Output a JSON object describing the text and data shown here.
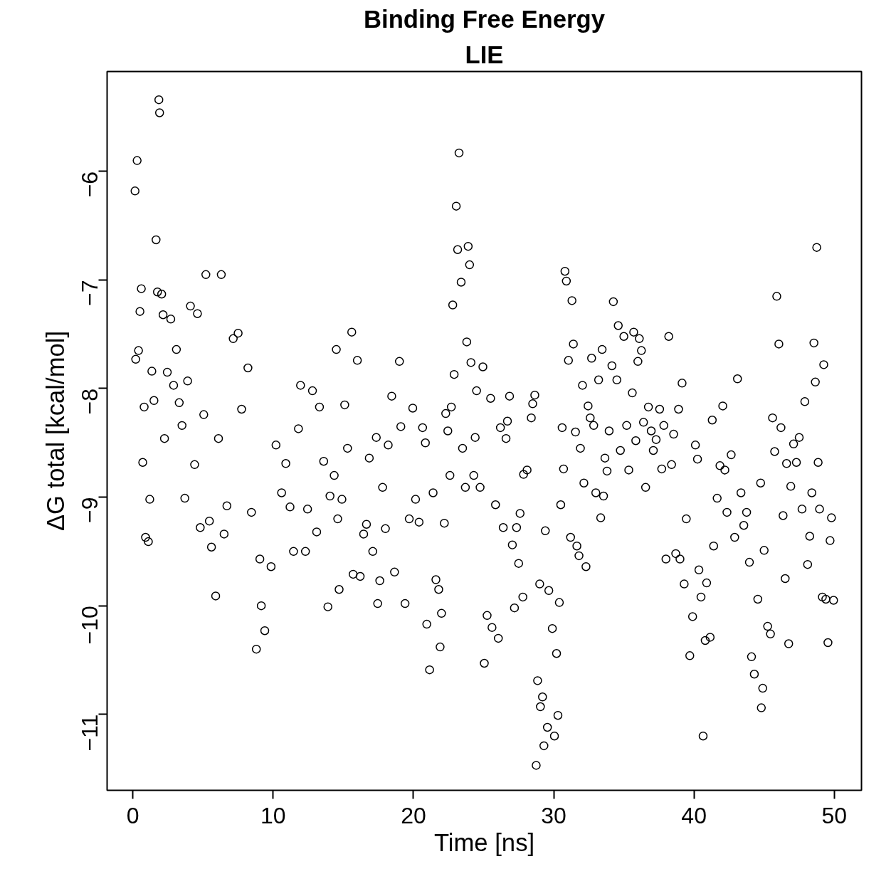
{
  "chart_data": {
    "type": "scatter",
    "title": "Binding Free Energy",
    "subtitle": "LIE",
    "xlabel": "Time [ns]",
    "ylabel": "ΔG total [kcal/mol]",
    "xlim": [
      -1.84,
      51.94
    ],
    "ylim": [
      -11.7,
      -5.08
    ],
    "xticks": [
      0,
      10,
      20,
      30,
      40,
      50
    ],
    "yticks": [
      -11,
      -10,
      -9,
      -8,
      -7,
      -6
    ],
    "grid": false,
    "marker": "circle",
    "series": [
      {
        "color": "#000000",
        "x": [
          0.15,
          0.3,
          0.2,
          0.4,
          0.5,
          0.6,
          0.7,
          0.8,
          0.9,
          1.1,
          1.2,
          1.35,
          1.5,
          1.65,
          1.75,
          1.85,
          1.9,
          2.05,
          2.15,
          2.25,
          2.45,
          2.7,
          2.9,
          3.1,
          3.3,
          3.5,
          3.7,
          3.9,
          4.1,
          4.4,
          4.6,
          4.8,
          5.05,
          5.2,
          5.45,
          5.6,
          5.9,
          6.1,
          6.3,
          6.5,
          6.7,
          7.15,
          7.5,
          7.75,
          8.2,
          8.45,
          8.8,
          9.05,
          9.15,
          9.4,
          9.85,
          10.2,
          10.6,
          10.9,
          11.2,
          11.45,
          11.8,
          11.95,
          12.3,
          12.45,
          12.8,
          13.1,
          13.3,
          13.6,
          13.9,
          14.05,
          14.35,
          14.5,
          14.6,
          14.7,
          14.9,
          15.1,
          15.3,
          15.6,
          15.7,
          16.0,
          16.2,
          16.45,
          16.65,
          16.85,
          17.1,
          17.35,
          17.45,
          17.6,
          17.8,
          18.0,
          18.2,
          18.45,
          18.65,
          19.0,
          19.1,
          19.4,
          19.7,
          19.95,
          20.15,
          20.4,
          20.65,
          20.85,
          20.95,
          21.15,
          21.4,
          21.6,
          21.8,
          21.9,
          22.0,
          22.2,
          22.3,
          22.45,
          22.6,
          22.7,
          22.8,
          22.9,
          23.05,
          23.15,
          23.25,
          23.4,
          23.5,
          23.7,
          23.8,
          23.9,
          24.0,
          24.1,
          24.3,
          24.4,
          24.5,
          24.75,
          24.95,
          25.05,
          25.25,
          25.5,
          25.6,
          25.85,
          26.05,
          26.2,
          26.4,
          26.6,
          26.7,
          26.85,
          27.05,
          27.2,
          27.35,
          27.5,
          27.6,
          27.8,
          27.85,
          28.1,
          28.4,
          28.5,
          28.65,
          28.75,
          28.85,
          29.0,
          29.05,
          29.2,
          29.3,
          29.4,
          29.55,
          29.65,
          29.9,
          30.05,
          30.2,
          30.3,
          30.4,
          30.5,
          30.6,
          30.7,
          30.8,
          30.9,
          31.05,
          31.2,
          31.3,
          31.4,
          31.55,
          31.65,
          31.8,
          31.9,
          32.05,
          32.15,
          32.3,
          32.45,
          32.6,
          32.7,
          32.85,
          33.0,
          33.2,
          33.35,
          33.45,
          33.55,
          33.65,
          33.8,
          33.95,
          34.15,
          34.25,
          34.5,
          34.6,
          34.75,
          35.0,
          35.2,
          35.35,
          35.6,
          35.7,
          35.85,
          36.0,
          36.1,
          36.25,
          36.4,
          36.55,
          36.75,
          36.95,
          37.1,
          37.3,
          37.55,
          37.7,
          37.85,
          38.0,
          38.2,
          38.4,
          38.55,
          38.7,
          38.9,
          39.0,
          39.15,
          39.3,
          39.45,
          39.7,
          39.9,
          40.1,
          40.25,
          40.35,
          40.5,
          40.65,
          40.8,
          40.9,
          41.15,
          41.3,
          41.4,
          41.65,
          41.85,
          42.05,
          42.2,
          42.35,
          42.65,
          42.9,
          43.1,
          43.35,
          43.55,
          43.75,
          43.95,
          44.1,
          44.3,
          44.55,
          44.75,
          44.8,
          44.9,
          45.0,
          45.25,
          45.45,
          45.6,
          45.75,
          45.9,
          46.05,
          46.2,
          46.35,
          46.5,
          46.6,
          46.75,
          46.9,
          47.1,
          47.3,
          47.5,
          47.7,
          47.9,
          48.1,
          48.25,
          48.4,
          48.55,
          48.65,
          48.75,
          48.85,
          48.95,
          49.15,
          49.25,
          49.4,
          49.55,
          49.7,
          49.8,
          49.95
        ],
        "values": [
          -6.18,
          -5.9,
          -7.73,
          -7.65,
          -7.29,
          -7.08,
          -8.68,
          -8.17,
          -9.37,
          -9.41,
          -9.02,
          -7.84,
          -8.11,
          -6.63,
          -7.11,
          -5.34,
          -5.46,
          -7.13,
          -7.32,
          -8.46,
          -7.85,
          -7.36,
          -7.97,
          -7.64,
          -8.13,
          -8.34,
          -9.01,
          -7.93,
          -7.24,
          -8.7,
          -7.31,
          -9.28,
          -8.24,
          -6.95,
          -9.22,
          -9.46,
          -9.91,
          -8.46,
          -6.95,
          -9.34,
          -9.08,
          -7.54,
          -7.49,
          -8.19,
          -7.81,
          -9.14,
          -10.4,
          -9.57,
          -10.0,
          -10.23,
          -9.64,
          -8.52,
          -8.96,
          -8.69,
          -9.09,
          -9.5,
          -8.37,
          -7.97,
          -9.5,
          -9.11,
          -8.02,
          -9.32,
          -8.17,
          -8.67,
          -10.01,
          -8.99,
          -8.8,
          -7.64,
          -9.2,
          -9.85,
          -9.02,
          -8.15,
          -8.55,
          -7.48,
          -9.71,
          -7.74,
          -9.73,
          -9.34,
          -9.25,
          -8.64,
          -9.5,
          -8.45,
          -9.98,
          -9.77,
          -8.91,
          -9.29,
          -8.52,
          -8.07,
          -9.69,
          -7.75,
          -8.35,
          -9.98,
          -9.2,
          -8.18,
          -9.02,
          -9.23,
          -8.36,
          -8.5,
          -10.17,
          -10.59,
          -8.96,
          -9.76,
          -9.85,
          -10.38,
          -10.07,
          -9.24,
          -8.23,
          -8.39,
          -8.8,
          -8.17,
          -7.23,
          -7.87,
          -6.32,
          -6.72,
          -5.83,
          -7.02,
          -8.55,
          -8.91,
          -7.57,
          -6.69,
          -6.86,
          -7.76,
          -8.8,
          -8.45,
          -8.02,
          -8.91,
          -7.8,
          -10.53,
          -10.09,
          -8.09,
          -10.2,
          -9.07,
          -10.3,
          -8.36,
          -9.28,
          -8.46,
          -8.3,
          -8.07,
          -9.44,
          -10.02,
          -9.28,
          -9.61,
          -9.15,
          -9.92,
          -8.79,
          -8.75,
          -8.27,
          -8.14,
          -8.06,
          -11.47,
          -10.69,
          -9.8,
          -10.93,
          -10.84,
          -11.29,
          -9.31,
          -11.12,
          -9.86,
          -10.21,
          -11.2,
          -10.44,
          -11.01,
          -9.97,
          -9.07,
          -8.36,
          -8.74,
          -6.92,
          -7.01,
          -7.74,
          -9.37,
          -7.19,
          -7.59,
          -8.4,
          -9.45,
          -9.54,
          -8.55,
          -7.97,
          -8.87,
          -9.64,
          -8.16,
          -8.27,
          -7.72,
          -8.34,
          -8.96,
          -7.92,
          -9.19,
          -7.64,
          -8.99,
          -8.64,
          -8.76,
          -8.39,
          -7.79,
          -7.2,
          -7.92,
          -7.42,
          -8.57,
          -7.52,
          -8.34,
          -8.75,
          -8.04,
          -7.48,
          -8.48,
          -7.75,
          -7.54,
          -7.65,
          -8.31,
          -8.91,
          -8.17,
          -8.39,
          -8.57,
          -8.47,
          -8.19,
          -8.74,
          -8.34,
          -9.57,
          -7.52,
          -8.7,
          -8.42,
          -9.52,
          -8.19,
          -9.57,
          -7.95,
          -9.8,
          -9.2,
          -10.46,
          -10.1,
          -8.52,
          -8.65,
          -9.67,
          -9.92,
          -11.2,
          -10.32,
          -9.79,
          -10.29,
          -8.29,
          -9.45,
          -9.01,
          -8.71,
          -8.16,
          -8.75,
          -9.14,
          -8.61,
          -9.37,
          -7.91,
          -8.96,
          -9.26,
          -9.14,
          -9.6,
          -10.47,
          -10.63,
          -9.94,
          -8.87,
          -10.94,
          -10.76,
          -9.49,
          -10.19,
          -10.26,
          -8.27,
          -8.58,
          -7.15,
          -7.59,
          -8.36,
          -9.17,
          -9.75,
          -8.69,
          -10.35,
          -8.9,
          -8.51,
          -8.68,
          -8.45,
          -9.11,
          -8.12,
          -9.62,
          -9.36,
          -8.96,
          -7.58,
          -7.94,
          -6.7,
          -8.68,
          -9.11,
          -9.92,
          -7.78,
          -9.94,
          -10.34,
          -9.4,
          -9.19,
          -9.95
        ]
      }
    ]
  }
}
